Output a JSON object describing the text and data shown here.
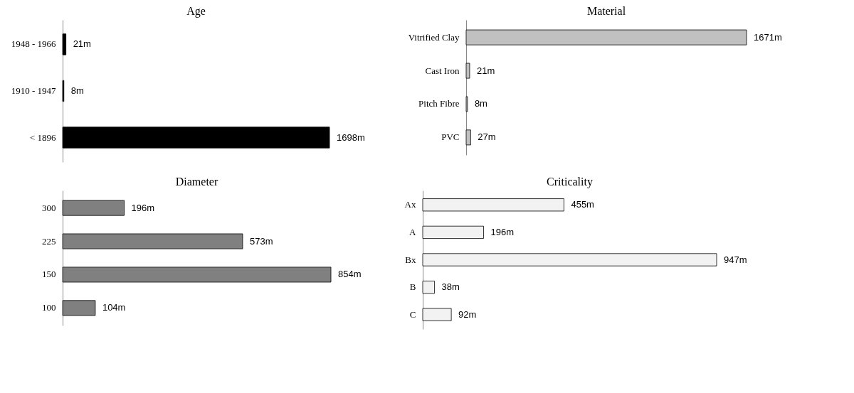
{
  "chart_data": [
    {
      "type": "bar",
      "title": "Age",
      "orientation": "horizontal",
      "categories": [
        "1948 - 1966",
        "1910 - 1947",
        "< 1896"
      ],
      "series": [
        {
          "color": "#000000",
          "values": [
            21,
            8,
            1698
          ],
          "value_labels": [
            "21m",
            "8m",
            "1698m"
          ]
        }
      ]
    },
    {
      "type": "bar",
      "title": "Material",
      "orientation": "horizontal",
      "categories": [
        "Vitrified Clay",
        "Cast Iron",
        "Pitch Fibre",
        "PVC"
      ],
      "series": [
        {
          "color": "#c0c0c0",
          "values": [
            1671,
            21,
            8,
            27
          ],
          "value_labels": [
            "1671m",
            "21m",
            "8m",
            "27m"
          ]
        }
      ]
    },
    {
      "type": "bar",
      "title": "Diameter",
      "orientation": "horizontal",
      "categories": [
        "300",
        "225",
        "150",
        "100"
      ],
      "series": [
        {
          "color": "#808080",
          "values": [
            196,
            573,
            854,
            104
          ],
          "value_labels": [
            "196m",
            "573m",
            "854m",
            "104m"
          ]
        }
      ]
    },
    {
      "type": "bar",
      "title": "Criticality",
      "orientation": "horizontal",
      "categories": [
        "Ax",
        "A",
        "Bx",
        "B",
        "C"
      ],
      "series": [
        {
          "color": "#f2f2f2",
          "values": [
            455,
            196,
            947,
            38,
            92
          ],
          "value_labels": [
            "455m",
            "196m",
            "947m",
            "38m",
            "92m"
          ]
        }
      ]
    }
  ]
}
